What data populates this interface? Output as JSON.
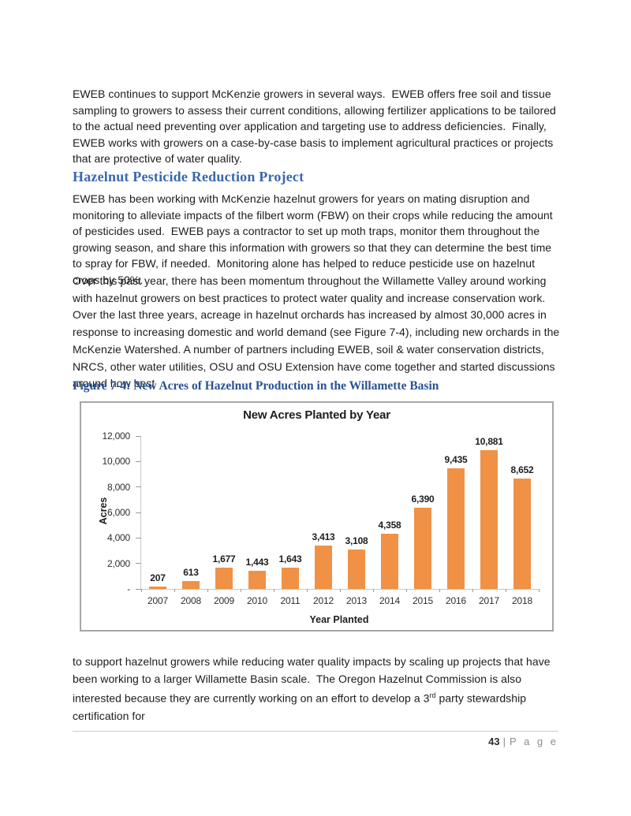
{
  "page": {
    "paragraph1": "EWEB continues to support McKenzie growers in several ways.  EWEB offers free soil and tissue sampling to growers to assess their current conditions, allowing fertilizer applications to be tailored to the actual need preventing over application and targeting use to address deficiencies.  Finally, EWEB works with growers on a case-by-case basis to implement agricultural practices or projects that are protective of water quality.",
    "heading": "Hazelnut Pesticide Reduction Project",
    "paragraph2": "EWEB has been working with McKenzie hazelnut growers for years on mating disruption and monitoring to alleviate impacts of the filbert worm (FBW) on their crops while reducing the amount of pesticides used.  EWEB pays a contractor to set up moth traps, monitor them throughout the growing season, and share this information with growers so that they can determine the best time to spray for FBW, if needed.  Monitoring alone has helped to reduce pesticide use on hazelnut crops by 50%.",
    "paragraph3": "Over this past year, there has been momentum throughout the Willamette Valley around working with hazelnut growers on best practices to protect water quality and increase conservation work. Over the last three years, acreage in hazelnut orchards has increased by almost 30,000 acres in response to increasing domestic and world demand (see Figure 7-4), including new orchards in the McKenzie Watershed. A number of partners including EWEB, soil & water conservation districts, NRCS, other water utilities, OSU and OSU Extension have come together and started discussions around how best",
    "figure_caption": "Figure 7-4: New Acres of Hazelnut Production in the Willamette Basin",
    "paragraph4_before": "to support hazelnut growers while reducing water quality impacts by scaling up projects that have been working to a larger Willamette Basin scale.  The Oregon Hazelnut Commission is also interested because they are currently working on an effort to develop a 3",
    "paragraph4_sup": "rd",
    "paragraph4_after": " party stewardship certification for",
    "footer": {
      "page_number": "43",
      "separator": "|",
      "page_word": "P a g e"
    }
  },
  "colors": {
    "heading_blue": "#3a67ad",
    "caption_blue": "#2a5291",
    "bar_orange": "#f09146",
    "axis_gray": "#c9c9c9"
  },
  "chart_data": {
    "type": "bar",
    "title": "New Acres Planted by Year",
    "xlabel": "Year Planted",
    "ylabel": "Acres",
    "categories": [
      "2007",
      "2008",
      "2009",
      "2010",
      "2011",
      "2012",
      "2013",
      "2014",
      "2015",
      "2016",
      "2017",
      "2018"
    ],
    "values": [
      207,
      613,
      1677,
      1443,
      1643,
      3413,
      3108,
      4358,
      6390,
      9435,
      10881,
      8652
    ],
    "data_labels": [
      "207",
      "613",
      "1,677",
      "1,443",
      "1,643",
      "3,413",
      "3,108",
      "4,358",
      "6,390",
      "9,435",
      "10,881",
      "8,652"
    ],
    "ytick_values": [
      0,
      2000,
      4000,
      6000,
      8000,
      10000,
      12000
    ],
    "ytick_labels": [
      "-",
      "2,000",
      "4,000",
      "6,000",
      "8,000",
      "10,000",
      "12,000"
    ],
    "ylim": [
      0,
      12000
    ],
    "grid": false,
    "legend": "none",
    "bar_color": "#f09146"
  }
}
